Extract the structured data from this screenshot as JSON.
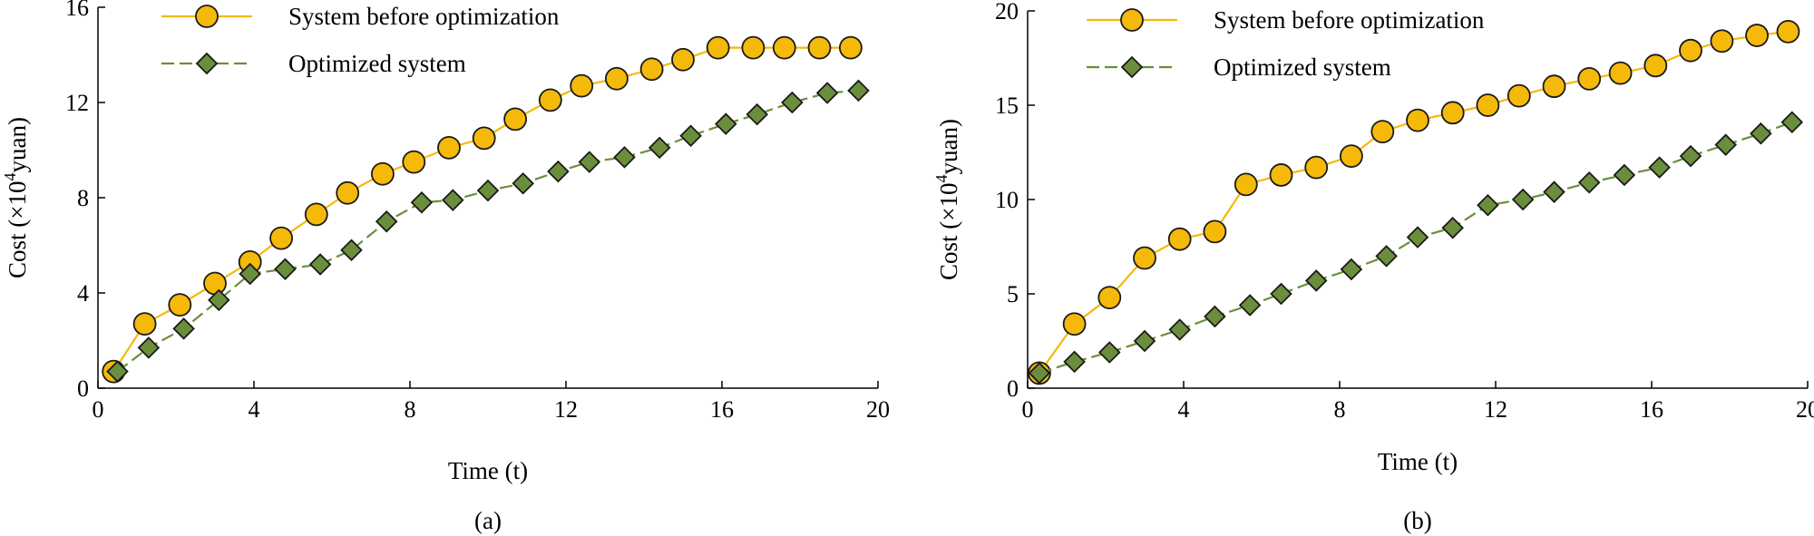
{
  "chart_data": [
    {
      "type": "line",
      "panel_label": "(a)",
      "xlabel": "Time (t)",
      "ylabel": {
        "prefix": "Cost (×10",
        "superscript": "4",
        "suffix": "yuan)"
      },
      "xlim": [
        0,
        20
      ],
      "ylim": [
        0,
        16
      ],
      "xticks": [
        0,
        4,
        8,
        12,
        16,
        20
      ],
      "yticks": [
        0,
        4,
        8,
        12,
        16
      ],
      "grid": false,
      "legend_position": "top-left",
      "series": [
        {
          "name": "System before optimization",
          "color": "#F5B90A",
          "marker": "circle",
          "line_style": "solid",
          "x": [
            0.4,
            1.2,
            2.1,
            3.0,
            3.9,
            4.7,
            5.6,
            6.4,
            7.3,
            8.1,
            9.0,
            9.9,
            10.7,
            11.6,
            12.4,
            13.3,
            14.2,
            15.0,
            15.9,
            16.8,
            17.6,
            18.5,
            19.3
          ],
          "y": [
            0.7,
            2.7,
            3.5,
            4.4,
            5.3,
            6.3,
            7.3,
            8.2,
            9.0,
            9.5,
            10.1,
            10.5,
            11.3,
            12.1,
            12.7,
            13.0,
            13.4,
            13.8,
            14.3,
            14.3,
            14.3,
            14.3,
            14.3
          ]
        },
        {
          "name": "Optimized system",
          "color": "#6B8E3C",
          "marker": "diamond",
          "line_style": "dashed",
          "x": [
            0.5,
            1.3,
            2.2,
            3.1,
            3.9,
            4.8,
            5.7,
            6.5,
            7.4,
            8.3,
            9.1,
            10.0,
            10.9,
            11.8,
            12.6,
            13.5,
            14.4,
            15.2,
            16.1,
            16.9,
            17.8,
            18.7,
            19.5
          ],
          "y": [
            0.7,
            1.7,
            2.5,
            3.7,
            4.8,
            5.0,
            5.2,
            5.8,
            7.0,
            7.8,
            7.9,
            8.3,
            8.6,
            9.1,
            9.5,
            9.7,
            10.1,
            10.6,
            11.1,
            11.5,
            12.0,
            12.4,
            12.5
          ]
        }
      ]
    },
    {
      "type": "line",
      "panel_label": "(b)",
      "xlabel": "Time (t)",
      "ylabel": {
        "prefix": "Cost (×10",
        "superscript": "4",
        "suffix": "yuan)"
      },
      "xlim": [
        0,
        20
      ],
      "ylim": [
        0,
        20
      ],
      "xticks": [
        0,
        4,
        8,
        12,
        16,
        20
      ],
      "yticks": [
        0,
        5,
        10,
        15,
        20
      ],
      "grid": false,
      "legend_position": "top-left",
      "series": [
        {
          "name": "System before optimization",
          "color": "#F5B90A",
          "marker": "circle",
          "line_style": "solid",
          "x": [
            0.3,
            1.2,
            2.1,
            3.0,
            3.9,
            4.8,
            5.6,
            6.5,
            7.4,
            8.3,
            9.1,
            10.0,
            10.9,
            11.8,
            12.6,
            13.5,
            14.4,
            15.2,
            16.1,
            17.0,
            17.8,
            18.7,
            19.5
          ],
          "y": [
            0.8,
            3.4,
            4.8,
            6.9,
            7.9,
            8.3,
            10.8,
            11.3,
            11.7,
            12.3,
            13.6,
            14.2,
            14.6,
            15.0,
            15.5,
            16.0,
            16.4,
            16.7,
            17.1,
            17.9,
            18.4,
            18.7,
            18.9
          ]
        },
        {
          "name": "Optimized system",
          "color": "#6B8E3C",
          "marker": "diamond",
          "line_style": "dashed",
          "x": [
            0.3,
            1.2,
            2.1,
            3.0,
            3.9,
            4.8,
            5.7,
            6.5,
            7.4,
            8.3,
            9.2,
            10.0,
            10.9,
            11.8,
            12.7,
            13.5,
            14.4,
            15.3,
            16.2,
            17.0,
            17.9,
            18.8,
            19.6
          ],
          "y": [
            0.8,
            1.4,
            1.9,
            2.5,
            3.1,
            3.8,
            4.4,
            5.0,
            5.7,
            6.3,
            7.0,
            8.0,
            8.5,
            9.7,
            10.0,
            10.4,
            10.9,
            11.3,
            11.7,
            12.3,
            12.9,
            13.5,
            14.1
          ]
        }
      ]
    }
  ]
}
